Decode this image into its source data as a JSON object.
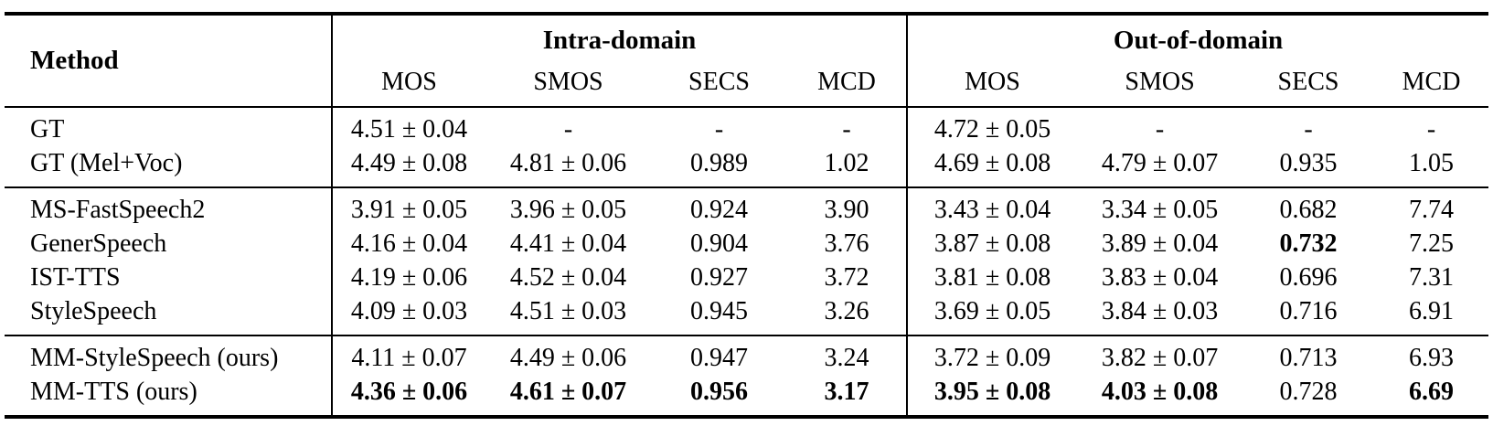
{
  "table": {
    "method_header": "Method",
    "groups": [
      {
        "label": "Intra-domain",
        "metrics": [
          "MOS",
          "SMOS",
          "SECS",
          "MCD"
        ]
      },
      {
        "label": "Out-of-domain",
        "metrics": [
          "MOS",
          "SMOS",
          "SECS",
          "MCD"
        ]
      }
    ],
    "sections": [
      {
        "rows": [
          {
            "method": "GT",
            "cells": [
              "4.51 ± 0.04",
              "-",
              "-",
              "-",
              "4.72 ± 0.05",
              "-",
              "-",
              "-"
            ],
            "bold": [
              0,
              0,
              0,
              0,
              0,
              0,
              0,
              0
            ]
          },
          {
            "method": "GT (Mel+Voc)",
            "cells": [
              "4.49 ± 0.08",
              "4.81 ± 0.06",
              "0.989",
              "1.02",
              "4.69 ± 0.08",
              "4.79 ± 0.07",
              "0.935",
              "1.05"
            ],
            "bold": [
              0,
              0,
              0,
              0,
              0,
              0,
              0,
              0
            ]
          }
        ]
      },
      {
        "rows": [
          {
            "method": "MS-FastSpeech2",
            "cells": [
              "3.91 ± 0.05",
              "3.96 ± 0.05",
              "0.924",
              "3.90",
              "3.43 ± 0.04",
              "3.34 ± 0.05",
              "0.682",
              "7.74"
            ],
            "bold": [
              0,
              0,
              0,
              0,
              0,
              0,
              0,
              0
            ]
          },
          {
            "method": "GenerSpeech",
            "cells": [
              "4.16 ± 0.04",
              "4.41 ± 0.04",
              "0.904",
              "3.76",
              "3.87 ± 0.08",
              "3.89 ± 0.04",
              "0.732",
              "7.25"
            ],
            "bold": [
              0,
              0,
              0,
              0,
              0,
              0,
              1,
              0
            ]
          },
          {
            "method": "IST-TTS",
            "cells": [
              "4.19 ± 0.06",
              "4.52 ± 0.04",
              "0.927",
              "3.72",
              "3.81 ± 0.08",
              "3.83 ± 0.04",
              "0.696",
              "7.31"
            ],
            "bold": [
              0,
              0,
              0,
              0,
              0,
              0,
              0,
              0
            ]
          },
          {
            "method": "StyleSpeech",
            "cells": [
              "4.09 ± 0.03",
              "4.51 ± 0.03",
              "0.945",
              "3.26",
              "3.69 ± 0.05",
              "3.84 ± 0.03",
              "0.716",
              "6.91"
            ],
            "bold": [
              0,
              0,
              0,
              0,
              0,
              0,
              0,
              0
            ]
          }
        ]
      },
      {
        "rows": [
          {
            "method": "MM-StyleSpeech (ours)",
            "cells": [
              "4.11 ± 0.07",
              "4.49 ± 0.06",
              "0.947",
              "3.24",
              "3.72 ± 0.09",
              "3.82 ± 0.07",
              "0.713",
              "6.93"
            ],
            "bold": [
              0,
              0,
              0,
              0,
              0,
              0,
              0,
              0
            ]
          },
          {
            "method": "MM-TTS (ours)",
            "cells": [
              "4.36 ± 0.06",
              "4.61 ± 0.07",
              "0.956",
              "3.17",
              "3.95 ± 0.08",
              "4.03 ± 0.08",
              "0.728",
              "6.69"
            ],
            "bold": [
              1,
              1,
              1,
              1,
              1,
              1,
              0,
              1
            ]
          }
        ]
      }
    ]
  }
}
